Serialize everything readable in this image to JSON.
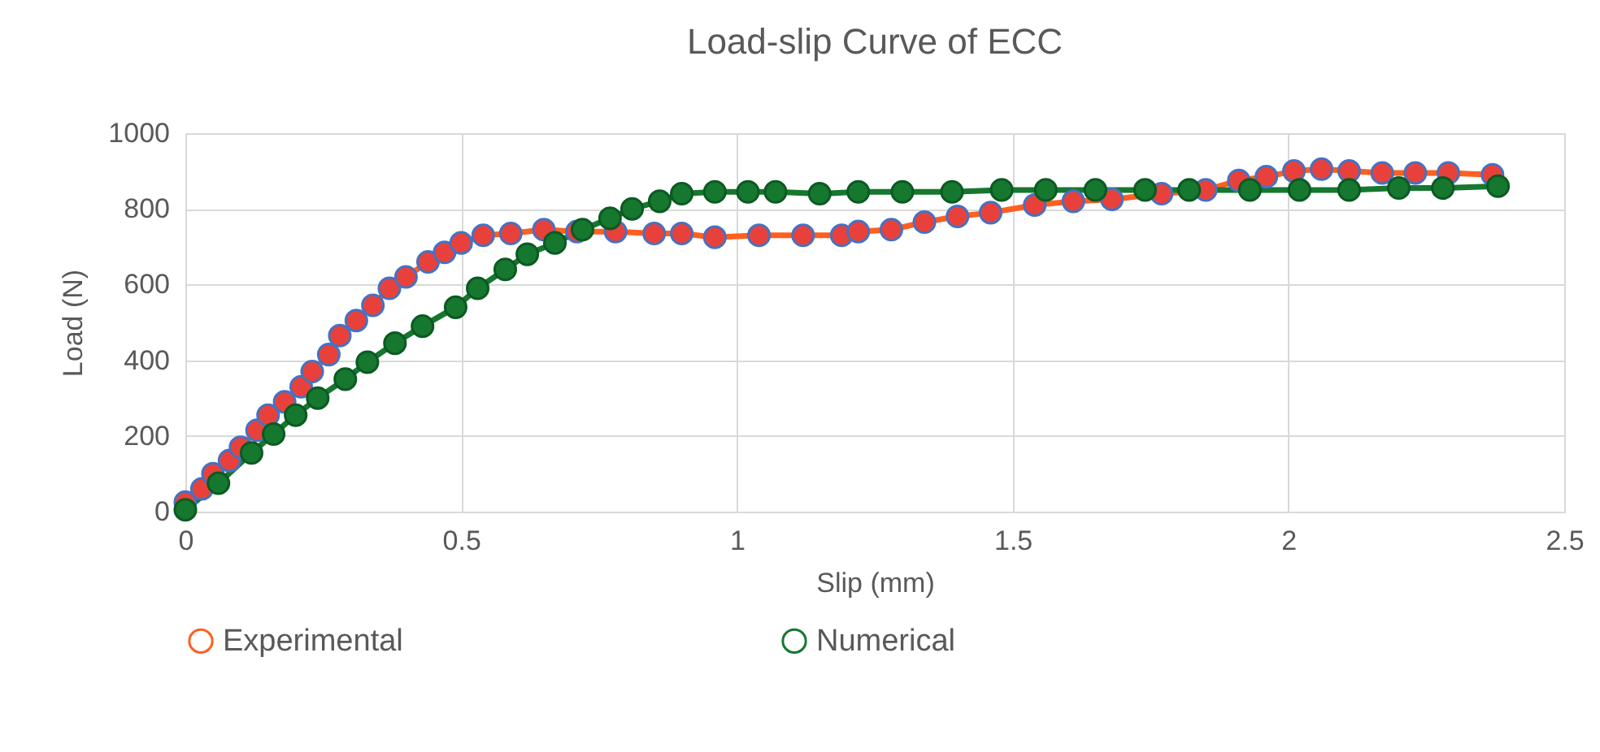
{
  "chart_data": {
    "type": "line",
    "title": "Load-slip Curve of ECC",
    "xlabel": "Slip (mm)",
    "ylabel": "Load (N)",
    "xlim": [
      0,
      2.5
    ],
    "xticks": [
      0,
      0.5,
      1,
      1.5,
      2,
      2.5
    ],
    "ylim": [
      0,
      1000
    ],
    "yticks": [
      0,
      200,
      400,
      600,
      800,
      1000
    ],
    "grid": true,
    "legend": "bottom",
    "marker": "circle",
    "line_style": "solid",
    "series": [
      {
        "name": "Experimental",
        "color": "#ff5f1f",
        "x": [
          0,
          0.03,
          0.05,
          0.08,
          0.1,
          0.13,
          0.15,
          0.18,
          0.21,
          0.23,
          0.26,
          0.28,
          0.31,
          0.34,
          0.37,
          0.4,
          0.44,
          0.47,
          0.5,
          0.54,
          0.59,
          0.65,
          0.71,
          0.78,
          0.85,
          0.9,
          0.96,
          1.04,
          1.12,
          1.19,
          1.22,
          1.28,
          1.34,
          1.4,
          1.46,
          1.54,
          1.61,
          1.68,
          1.77,
          1.85,
          1.91,
          1.96,
          2.01,
          2.06,
          2.11,
          2.17,
          2.23,
          2.29,
          2.37
        ],
        "values": [
          25,
          60,
          100,
          135,
          170,
          215,
          255,
          290,
          330,
          370,
          415,
          465,
          505,
          545,
          590,
          620,
          660,
          685,
          710,
          730,
          735,
          745,
          740,
          740,
          735,
          735,
          725,
          730,
          730,
          730,
          740,
          745,
          765,
          780,
          790,
          810,
          820,
          825,
          840,
          850,
          875,
          885,
          900,
          905,
          900,
          895,
          895,
          895,
          890
        ]
      },
      {
        "name": "Numerical",
        "color": "#16772f",
        "x": [
          0,
          0.06,
          0.12,
          0.16,
          0.2,
          0.24,
          0.29,
          0.33,
          0.38,
          0.43,
          0.49,
          0.53,
          0.58,
          0.62,
          0.67,
          0.72,
          0.77,
          0.81,
          0.86,
          0.9,
          0.96,
          1.02,
          1.07,
          1.15,
          1.22,
          1.3,
          1.39,
          1.48,
          1.56,
          1.65,
          1.74,
          1.82,
          1.93,
          2.02,
          2.11,
          2.2,
          2.28,
          2.38
        ],
        "values": [
          5,
          75,
          155,
          205,
          255,
          300,
          350,
          395,
          445,
          490,
          540,
          590,
          640,
          680,
          710,
          745,
          775,
          800,
          820,
          840,
          845,
          845,
          845,
          840,
          845,
          845,
          845,
          850,
          850,
          850,
          850,
          850,
          850,
          850,
          850,
          855,
          855,
          860
        ]
      }
    ]
  }
}
